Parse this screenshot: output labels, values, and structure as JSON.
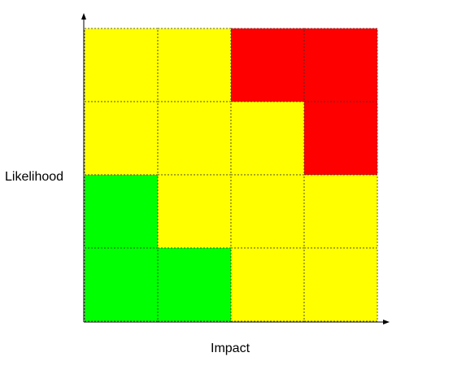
{
  "chart_data": {
    "type": "heatmap",
    "title": "",
    "xlabel": "Impact",
    "ylabel": "Likelihood",
    "colors": {
      "green": "#00ff00",
      "yellow": "#ffff00",
      "red": "#ff0000"
    },
    "grid": [
      [
        "yellow",
        "yellow",
        "red",
        "red"
      ],
      [
        "yellow",
        "yellow",
        "yellow",
        "red"
      ],
      [
        "green",
        "yellow",
        "yellow",
        "yellow"
      ],
      [
        "green",
        "green",
        "yellow",
        "yellow"
      ]
    ],
    "rows": 4,
    "cols": 4,
    "gridlines": "dashed"
  }
}
